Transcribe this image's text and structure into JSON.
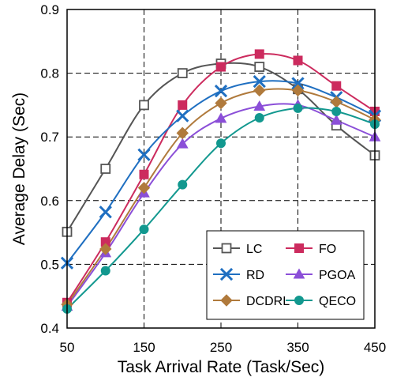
{
  "chart_data": {
    "type": "line",
    "title": "",
    "xlabel": "Task Arrival Rate (Task/Sec)",
    "ylabel": "Average Delay (Sec)",
    "xlim": [
      50,
      450
    ],
    "ylim": [
      0.4,
      0.9
    ],
    "xticks": [
      50,
      150,
      250,
      350,
      450
    ],
    "yticks": [
      0.4,
      0.5,
      0.6,
      0.7,
      0.8,
      0.9
    ],
    "xtick_labels": [
      "50",
      "150",
      "250",
      "350",
      "450"
    ],
    "ytick_labels": [
      "0.4",
      "0.5",
      "0.6",
      "0.7",
      "0.8",
      "0.9"
    ],
    "grid": true,
    "legend_position": "bottom-right",
    "x": [
      50,
      100,
      150,
      200,
      250,
      300,
      350,
      400,
      450
    ],
    "series": [
      {
        "name": "LC",
        "marker": "square-open",
        "color": "#555555",
        "values": [
          0.551,
          0.65,
          0.75,
          0.8,
          0.815,
          0.81,
          0.775,
          0.718,
          0.671
        ]
      },
      {
        "name": "FO",
        "marker": "square",
        "color": "#cc2b5e",
        "values": [
          0.44,
          0.535,
          0.641,
          0.75,
          0.81,
          0.83,
          0.82,
          0.78,
          0.74
        ]
      },
      {
        "name": "RD",
        "marker": "x",
        "color": "#1f6fc1",
        "values": [
          0.502,
          0.582,
          0.672,
          0.733,
          0.772,
          0.787,
          0.784,
          0.762,
          0.733
        ]
      },
      {
        "name": "PGOA",
        "marker": "triangle",
        "color": "#8b4fd8",
        "values": [
          0.434,
          0.518,
          0.612,
          0.689,
          0.729,
          0.748,
          0.75,
          0.726,
          0.7
        ]
      },
      {
        "name": "DCDRL",
        "marker": "diamond",
        "color": "#b07a3c",
        "values": [
          0.437,
          0.524,
          0.62,
          0.706,
          0.753,
          0.773,
          0.773,
          0.755,
          0.727
        ]
      },
      {
        "name": "QECO",
        "marker": "circle",
        "color": "#12988f",
        "values": [
          0.43,
          0.49,
          0.555,
          0.625,
          0.69,
          0.73,
          0.745,
          0.74,
          0.72
        ]
      }
    ]
  }
}
